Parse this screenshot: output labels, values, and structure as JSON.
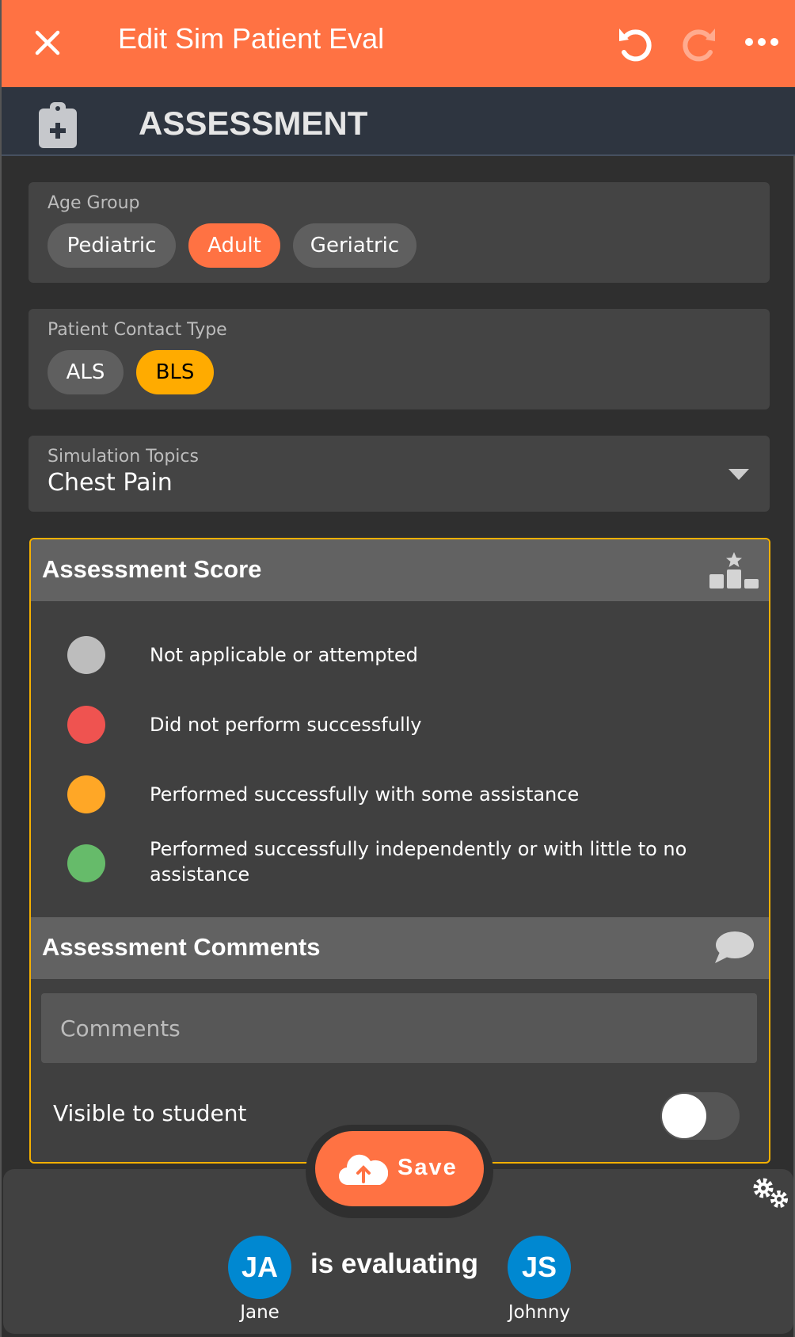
{
  "header": {
    "title": "Edit Sim Patient Eval",
    "close_icon": "close-icon",
    "undo_icon": "undo-icon",
    "redo_icon": "redo-icon",
    "more_icon": "more-icon"
  },
  "section": {
    "title": "ASSESSMENT",
    "icon": "clipboard-medical-icon"
  },
  "age_group": {
    "label": "Age Group",
    "options": [
      "Pediatric",
      "Adult",
      "Geriatric"
    ],
    "selected": "Adult"
  },
  "contact_type": {
    "label": "Patient Contact Type",
    "options": [
      "ALS",
      "BLS"
    ],
    "selected": "BLS"
  },
  "topics": {
    "label": "Simulation Topics",
    "value": "Chest Pain"
  },
  "score": {
    "title": "Assessment Score",
    "legend": [
      {
        "color": "#bdbdbd",
        "text": "Not applicable or attempted"
      },
      {
        "color": "#ef5350",
        "text": "Did not perform successfully"
      },
      {
        "color": "#ffa726",
        "text": "Performed successfully with some assistance"
      },
      {
        "color": "#66bb6a",
        "text": "Performed successfully independently or with little to no assistance"
      }
    ]
  },
  "comments": {
    "title": "Assessment Comments",
    "placeholder": "Comments",
    "visible_label": "Visible to student",
    "visible": false
  },
  "save": {
    "label": "Save"
  },
  "evaluation": {
    "evaluator_initials": "JA",
    "evaluator_name": "Jane",
    "text": "is evaluating",
    "student_initials": "JS",
    "student_name": "Johnny"
  },
  "colors": {
    "accent": "#ff7243",
    "bls": "#ffab00",
    "avatar": "#0088d1",
    "panel_border": "#f5b000"
  }
}
